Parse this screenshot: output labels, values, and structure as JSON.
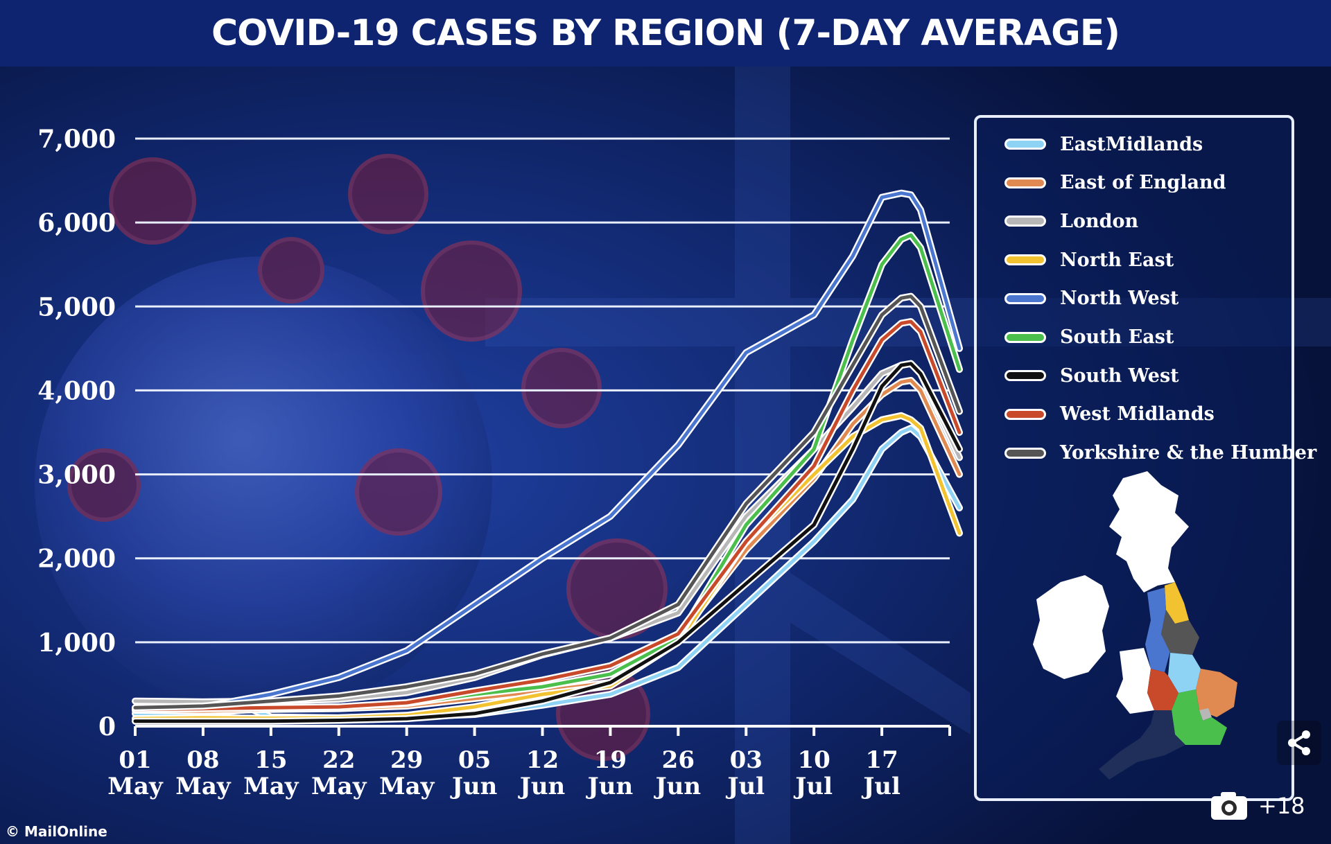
{
  "header": {
    "title": "COVID-19 CASES BY REGION (7-DAY AVERAGE)"
  },
  "credit": "© MailOnline",
  "gallery": {
    "count": "+18",
    "icon": "camera-icon"
  },
  "share": {
    "icon": "share-icon"
  },
  "colors": {
    "background": "#0a1a4a",
    "title_bar": "#0e2470",
    "gridline": "#e8eefc"
  },
  "chart_data": {
    "type": "line",
    "title": "COVID-19 CASES BY REGION (7-DAY AVERAGE)",
    "xlabel": "",
    "ylabel": "",
    "ylim": [
      0,
      7000
    ],
    "xlim": [
      "2021-05-01",
      "2021-07-25"
    ],
    "y_ticks": [
      {
        "value": 7000,
        "label": "7,000"
      },
      {
        "value": 6000,
        "label": "6,000"
      },
      {
        "value": 5000,
        "label": "5,000"
      },
      {
        "value": 4000,
        "label": "4,000"
      },
      {
        "value": 3000,
        "label": "3,000"
      },
      {
        "value": 2000,
        "label": "2,000"
      },
      {
        "value": 1000,
        "label": "1,000"
      },
      {
        "value": 0,
        "label": "0"
      }
    ],
    "x_ticks": [
      {
        "date": "2021-05-01",
        "day": "01",
        "month": "May"
      },
      {
        "date": "2021-05-08",
        "day": "08",
        "month": "May"
      },
      {
        "date": "2021-05-15",
        "day": "15",
        "month": "May"
      },
      {
        "date": "2021-05-22",
        "day": "22",
        "month": "May"
      },
      {
        "date": "2021-05-29",
        "day": "29",
        "month": "May"
      },
      {
        "date": "2021-06-05",
        "day": "05",
        "month": "Jun"
      },
      {
        "date": "2021-06-12",
        "day": "12",
        "month": "Jun"
      },
      {
        "date": "2021-06-19",
        "day": "19",
        "month": "Jun"
      },
      {
        "date": "2021-06-26",
        "day": "26",
        "month": "Jun"
      },
      {
        "date": "2021-07-03",
        "day": "03",
        "month": "Jul"
      },
      {
        "date": "2021-07-10",
        "day": "10",
        "month": "Jul"
      },
      {
        "date": "2021-07-17",
        "day": "17",
        "month": "Jul"
      }
    ],
    "grid": true,
    "legend_position": "right",
    "series": [
      {
        "name": "EastMidlands",
        "color": "#8fd3f4",
        "points": [
          [
            "2021-05-01",
            150
          ],
          [
            "2021-05-08",
            150
          ],
          [
            "2021-05-13",
            200
          ],
          [
            "2021-05-15",
            110
          ],
          [
            "2021-05-22",
            100
          ],
          [
            "2021-05-29",
            110
          ],
          [
            "2021-06-05",
            140
          ],
          [
            "2021-06-12",
            250
          ],
          [
            "2021-06-19",
            380
          ],
          [
            "2021-06-26",
            700
          ],
          [
            "2021-07-03",
            1450
          ],
          [
            "2021-07-10",
            2200
          ],
          [
            "2021-07-14",
            2700
          ],
          [
            "2021-07-17",
            3300
          ],
          [
            "2021-07-19",
            3500
          ],
          [
            "2021-07-20",
            3550
          ],
          [
            "2021-07-21",
            3450
          ],
          [
            "2021-07-25",
            2600
          ]
        ]
      },
      {
        "name": "East of England",
        "color": "#e08a52",
        "points": [
          [
            "2021-05-01",
            190
          ],
          [
            "2021-05-08",
            180
          ],
          [
            "2021-05-15",
            200
          ],
          [
            "2021-05-22",
            210
          ],
          [
            "2021-05-29",
            240
          ],
          [
            "2021-06-05",
            330
          ],
          [
            "2021-06-12",
            420
          ],
          [
            "2021-06-19",
            520
          ],
          [
            "2021-06-26",
            1050
          ],
          [
            "2021-07-03",
            2100
          ],
          [
            "2021-07-10",
            2950
          ],
          [
            "2021-07-14",
            3600
          ],
          [
            "2021-07-17",
            3950
          ],
          [
            "2021-07-19",
            4100
          ],
          [
            "2021-07-20",
            4120
          ],
          [
            "2021-07-21",
            4000
          ],
          [
            "2021-07-25",
            3000
          ]
        ]
      },
      {
        "name": "London",
        "color": "#b7b7b7",
        "points": [
          [
            "2021-05-01",
            300
          ],
          [
            "2021-05-08",
            290
          ],
          [
            "2021-05-15",
            300
          ],
          [
            "2021-05-22",
            320
          ],
          [
            "2021-05-29",
            400
          ],
          [
            "2021-06-05",
            580
          ],
          [
            "2021-06-12",
            850
          ],
          [
            "2021-06-19",
            1050
          ],
          [
            "2021-06-26",
            1350
          ],
          [
            "2021-07-03",
            2500
          ],
          [
            "2021-07-10",
            3300
          ],
          [
            "2021-07-14",
            3800
          ],
          [
            "2021-07-17",
            4200
          ],
          [
            "2021-07-19",
            4300
          ],
          [
            "2021-07-20",
            4320
          ],
          [
            "2021-07-21",
            4200
          ],
          [
            "2021-07-25",
            3200
          ]
        ]
      },
      {
        "name": "North East",
        "color": "#f2c230",
        "points": [
          [
            "2021-05-01",
            90
          ],
          [
            "2021-05-08",
            100
          ],
          [
            "2021-05-15",
            95
          ],
          [
            "2021-05-22",
            100
          ],
          [
            "2021-05-29",
            130
          ],
          [
            "2021-06-05",
            230
          ],
          [
            "2021-06-12",
            380
          ],
          [
            "2021-06-19",
            480
          ],
          [
            "2021-06-26",
            1000
          ],
          [
            "2021-07-03",
            2200
          ],
          [
            "2021-07-10",
            3000
          ],
          [
            "2021-07-14",
            3450
          ],
          [
            "2021-07-17",
            3650
          ],
          [
            "2021-07-19",
            3700
          ],
          [
            "2021-07-20",
            3650
          ],
          [
            "2021-07-21",
            3550
          ],
          [
            "2021-07-25",
            2300
          ]
        ]
      },
      {
        "name": "North West",
        "color": "#4b76cf",
        "points": [
          [
            "2021-05-01",
            190
          ],
          [
            "2021-05-08",
            230
          ],
          [
            "2021-05-15",
            380
          ],
          [
            "2021-05-22",
            580
          ],
          [
            "2021-05-29",
            900
          ],
          [
            "2021-06-05",
            1450
          ],
          [
            "2021-06-12",
            2000
          ],
          [
            "2021-06-19",
            2500
          ],
          [
            "2021-06-26",
            3350
          ],
          [
            "2021-07-03",
            4450
          ],
          [
            "2021-07-10",
            4900
          ],
          [
            "2021-07-14",
            5600
          ],
          [
            "2021-07-17",
            6300
          ],
          [
            "2021-07-19",
            6350
          ],
          [
            "2021-07-20",
            6330
          ],
          [
            "2021-07-21",
            6150
          ],
          [
            "2021-07-25",
            4500
          ]
        ]
      },
      {
        "name": "South East",
        "color": "#4bbf4b",
        "points": [
          [
            "2021-05-01",
            210
          ],
          [
            "2021-05-08",
            210
          ],
          [
            "2021-05-15",
            220
          ],
          [
            "2021-05-22",
            230
          ],
          [
            "2021-05-29",
            270
          ],
          [
            "2021-06-05",
            380
          ],
          [
            "2021-06-12",
            470
          ],
          [
            "2021-06-19",
            620
          ],
          [
            "2021-06-26",
            1050
          ],
          [
            "2021-07-03",
            2400
          ],
          [
            "2021-07-10",
            3300
          ],
          [
            "2021-07-14",
            4600
          ],
          [
            "2021-07-17",
            5500
          ],
          [
            "2021-07-19",
            5800
          ],
          [
            "2021-07-20",
            5850
          ],
          [
            "2021-07-21",
            5700
          ],
          [
            "2021-07-25",
            4250
          ]
        ]
      },
      {
        "name": "South West",
        "color": "#111111",
        "points": [
          [
            "2021-05-01",
            60
          ],
          [
            "2021-05-08",
            60
          ],
          [
            "2021-05-15",
            60
          ],
          [
            "2021-05-22",
            70
          ],
          [
            "2021-05-29",
            90
          ],
          [
            "2021-06-05",
            150
          ],
          [
            "2021-06-12",
            300
          ],
          [
            "2021-06-19",
            520
          ],
          [
            "2021-06-26",
            1000
          ],
          [
            "2021-07-03",
            1700
          ],
          [
            "2021-07-10",
            2400
          ],
          [
            "2021-07-14",
            3300
          ],
          [
            "2021-07-17",
            4050
          ],
          [
            "2021-07-19",
            4300
          ],
          [
            "2021-07-20",
            4320
          ],
          [
            "2021-07-21",
            4200
          ],
          [
            "2021-07-25",
            3300
          ]
        ]
      },
      {
        "name": "West Midlands",
        "color": "#c84a2a",
        "points": [
          [
            "2021-05-01",
            200
          ],
          [
            "2021-05-08",
            210
          ],
          [
            "2021-05-15",
            220
          ],
          [
            "2021-05-22",
            230
          ],
          [
            "2021-05-29",
            280
          ],
          [
            "2021-06-05",
            420
          ],
          [
            "2021-06-12",
            550
          ],
          [
            "2021-06-19",
            720
          ],
          [
            "2021-06-26",
            1100
          ],
          [
            "2021-07-03",
            2200
          ],
          [
            "2021-07-10",
            3100
          ],
          [
            "2021-07-14",
            4000
          ],
          [
            "2021-07-17",
            4600
          ],
          [
            "2021-07-19",
            4800
          ],
          [
            "2021-07-20",
            4820
          ],
          [
            "2021-07-21",
            4700
          ],
          [
            "2021-07-25",
            3500
          ]
        ]
      },
      {
        "name": "Yorkshire & the Humber",
        "color": "#555555",
        "points": [
          [
            "2021-05-01",
            220
          ],
          [
            "2021-05-08",
            240
          ],
          [
            "2021-05-15",
            300
          ],
          [
            "2021-05-22",
            360
          ],
          [
            "2021-05-29",
            470
          ],
          [
            "2021-06-05",
            620
          ],
          [
            "2021-06-12",
            860
          ],
          [
            "2021-06-19",
            1050
          ],
          [
            "2021-06-26",
            1450
          ],
          [
            "2021-07-03",
            2650
          ],
          [
            "2021-07-10",
            3500
          ],
          [
            "2021-07-14",
            4300
          ],
          [
            "2021-07-17",
            4900
          ],
          [
            "2021-07-19",
            5100
          ],
          [
            "2021-07-20",
            5120
          ],
          [
            "2021-07-21",
            5000
          ],
          [
            "2021-07-25",
            3750
          ]
        ]
      }
    ]
  }
}
